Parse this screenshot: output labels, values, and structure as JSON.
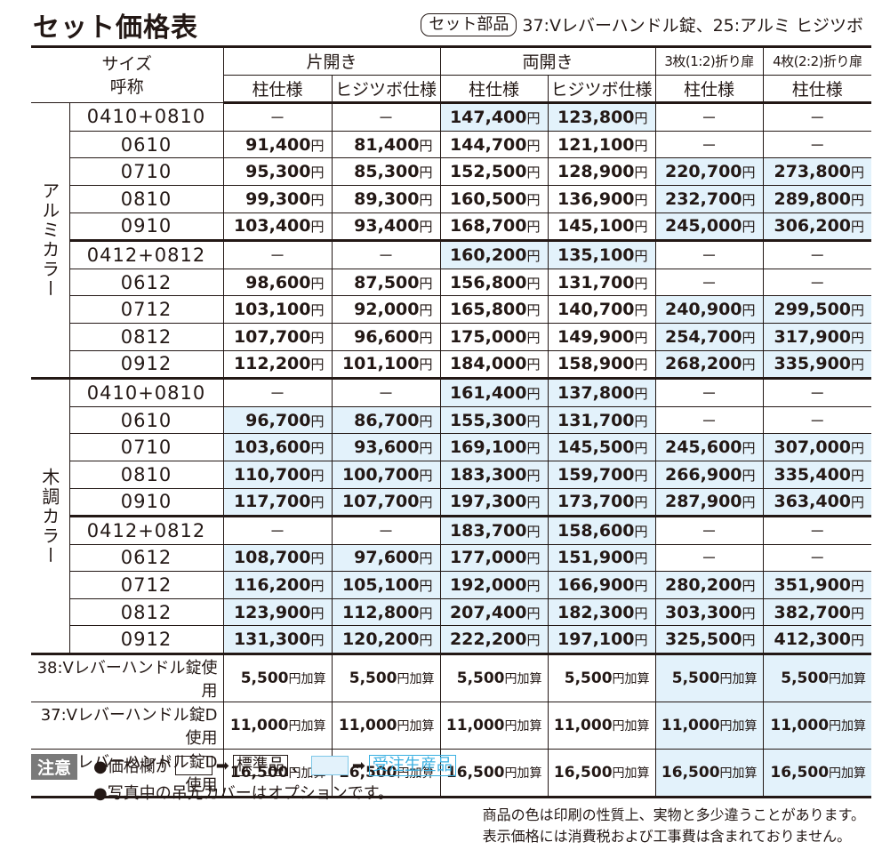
{
  "title": "セット価格表",
  "set_parts": {
    "badge": "セット部品",
    "text": "37:Vレバーハンドル錠、25:アルミ ヒジツボ"
  },
  "header": {
    "size_label_1": "サイズ",
    "size_label_2": "呼称",
    "groups": [
      "片開き",
      "両開き",
      "3枚(1:2)折り扉",
      "4枚(2:2)折り扉"
    ],
    "subcolumns": [
      "柱仕様",
      "ヒジツボ仕様",
      "柱仕様",
      "ヒジツボ仕様",
      "柱仕様",
      "柱仕様"
    ]
  },
  "colors": {
    "standard_bg": "#ffffff",
    "made_to_order_bg": "#e3f2fb",
    "made_to_order_accent": "#3ab0e2",
    "text": "#231815",
    "note_badge": "#7a7a7a"
  },
  "yen": "円",
  "add_suffix": "円加算",
  "sections": [
    {
      "label": "アルミカラー",
      "rows": [
        {
          "size": "0410+0810",
          "cells": [
            {
              "v": "－",
              "b": false
            },
            {
              "v": "－",
              "b": false
            },
            {
              "v": "147,400",
              "b": true
            },
            {
              "v": "123,800",
              "b": true
            },
            {
              "v": "－",
              "b": false
            },
            {
              "v": "－",
              "b": false
            }
          ]
        },
        {
          "size": "0610",
          "cells": [
            {
              "v": "91,400",
              "b": false
            },
            {
              "v": "81,400",
              "b": false
            },
            {
              "v": "144,700",
              "b": false
            },
            {
              "v": "121,100",
              "b": false
            },
            {
              "v": "－",
              "b": false
            },
            {
              "v": "－",
              "b": false
            }
          ]
        },
        {
          "size": "0710",
          "cells": [
            {
              "v": "95,300",
              "b": false
            },
            {
              "v": "85,300",
              "b": false
            },
            {
              "v": "152,500",
              "b": false
            },
            {
              "v": "128,900",
              "b": false
            },
            {
              "v": "220,700",
              "b": true
            },
            {
              "v": "273,800",
              "b": true
            }
          ]
        },
        {
          "size": "0810",
          "cells": [
            {
              "v": "99,300",
              "b": false
            },
            {
              "v": "89,300",
              "b": false
            },
            {
              "v": "160,500",
              "b": false
            },
            {
              "v": "136,900",
              "b": false
            },
            {
              "v": "232,700",
              "b": true
            },
            {
              "v": "289,800",
              "b": true
            }
          ]
        },
        {
          "size": "0910",
          "sep": true,
          "cells": [
            {
              "v": "103,400",
              "b": false
            },
            {
              "v": "93,400",
              "b": false
            },
            {
              "v": "168,700",
              "b": false
            },
            {
              "v": "145,100",
              "b": false
            },
            {
              "v": "245,000",
              "b": true
            },
            {
              "v": "306,200",
              "b": true
            }
          ]
        },
        {
          "size": "0412+0812",
          "cells": [
            {
              "v": "－",
              "b": false
            },
            {
              "v": "－",
              "b": false
            },
            {
              "v": "160,200",
              "b": true
            },
            {
              "v": "135,100",
              "b": true
            },
            {
              "v": "－",
              "b": false
            },
            {
              "v": "－",
              "b": false
            }
          ]
        },
        {
          "size": "0612",
          "cells": [
            {
              "v": "98,600",
              "b": false
            },
            {
              "v": "87,500",
              "b": false
            },
            {
              "v": "156,800",
              "b": false
            },
            {
              "v": "131,700",
              "b": false
            },
            {
              "v": "－",
              "b": false
            },
            {
              "v": "－",
              "b": false
            }
          ]
        },
        {
          "size": "0712",
          "cells": [
            {
              "v": "103,100",
              "b": false
            },
            {
              "v": "92,000",
              "b": false
            },
            {
              "v": "165,800",
              "b": false
            },
            {
              "v": "140,700",
              "b": false
            },
            {
              "v": "240,900",
              "b": true
            },
            {
              "v": "299,500",
              "b": true
            }
          ]
        },
        {
          "size": "0812",
          "cells": [
            {
              "v": "107,700",
              "b": false
            },
            {
              "v": "96,600",
              "b": false
            },
            {
              "v": "175,000",
              "b": false
            },
            {
              "v": "149,900",
              "b": false
            },
            {
              "v": "254,700",
              "b": true
            },
            {
              "v": "317,900",
              "b": true
            }
          ]
        },
        {
          "size": "0912",
          "cells": [
            {
              "v": "112,200",
              "b": false
            },
            {
              "v": "101,100",
              "b": false
            },
            {
              "v": "184,000",
              "b": false
            },
            {
              "v": "158,900",
              "b": false
            },
            {
              "v": "268,200",
              "b": true
            },
            {
              "v": "335,900",
              "b": true
            }
          ]
        }
      ]
    },
    {
      "label": "木調カラー",
      "rows": [
        {
          "size": "0410+0810",
          "cells": [
            {
              "v": "－",
              "b": false
            },
            {
              "v": "－",
              "b": false
            },
            {
              "v": "161,400",
              "b": true
            },
            {
              "v": "137,800",
              "b": true
            },
            {
              "v": "－",
              "b": false
            },
            {
              "v": "－",
              "b": false
            }
          ]
        },
        {
          "size": "0610",
          "cells": [
            {
              "v": "96,700",
              "b": true
            },
            {
              "v": "86,700",
              "b": true
            },
            {
              "v": "155,300",
              "b": true
            },
            {
              "v": "131,700",
              "b": true
            },
            {
              "v": "－",
              "b": false
            },
            {
              "v": "－",
              "b": false
            }
          ]
        },
        {
          "size": "0710",
          "cells": [
            {
              "v": "103,600",
              "b": true
            },
            {
              "v": "93,600",
              "b": true
            },
            {
              "v": "169,100",
              "b": true
            },
            {
              "v": "145,500",
              "b": true
            },
            {
              "v": "245,600",
              "b": true
            },
            {
              "v": "307,000",
              "b": true
            }
          ]
        },
        {
          "size": "0810",
          "cells": [
            {
              "v": "110,700",
              "b": true
            },
            {
              "v": "100,700",
              "b": true
            },
            {
              "v": "183,300",
              "b": true
            },
            {
              "v": "159,700",
              "b": true
            },
            {
              "v": "266,900",
              "b": true
            },
            {
              "v": "335,400",
              "b": true
            }
          ]
        },
        {
          "size": "0910",
          "sep": true,
          "cells": [
            {
              "v": "117,700",
              "b": true
            },
            {
              "v": "107,700",
              "b": true
            },
            {
              "v": "197,300",
              "b": true
            },
            {
              "v": "173,700",
              "b": true
            },
            {
              "v": "287,900",
              "b": true
            },
            {
              "v": "363,400",
              "b": true
            }
          ]
        },
        {
          "size": "0412+0812",
          "cells": [
            {
              "v": "－",
              "b": false
            },
            {
              "v": "－",
              "b": false
            },
            {
              "v": "183,700",
              "b": true
            },
            {
              "v": "158,600",
              "b": true
            },
            {
              "v": "－",
              "b": false
            },
            {
              "v": "－",
              "b": false
            }
          ]
        },
        {
          "size": "0612",
          "cells": [
            {
              "v": "108,700",
              "b": true
            },
            {
              "v": "97,600",
              "b": true
            },
            {
              "v": "177,000",
              "b": true
            },
            {
              "v": "151,900",
              "b": true
            },
            {
              "v": "－",
              "b": false
            },
            {
              "v": "－",
              "b": false
            }
          ]
        },
        {
          "size": "0712",
          "cells": [
            {
              "v": "116,200",
              "b": true
            },
            {
              "v": "105,100",
              "b": true
            },
            {
              "v": "192,000",
              "b": true
            },
            {
              "v": "166,900",
              "b": true
            },
            {
              "v": "280,200",
              "b": true
            },
            {
              "v": "351,900",
              "b": true
            }
          ]
        },
        {
          "size": "0812",
          "cells": [
            {
              "v": "123,900",
              "b": true
            },
            {
              "v": "112,800",
              "b": true
            },
            {
              "v": "207,400",
              "b": true
            },
            {
              "v": "182,300",
              "b": true
            },
            {
              "v": "303,300",
              "b": true
            },
            {
              "v": "382,700",
              "b": true
            }
          ]
        },
        {
          "size": "0912",
          "cells": [
            {
              "v": "131,300",
              "b": true
            },
            {
              "v": "120,200",
              "b": true
            },
            {
              "v": "222,200",
              "b": true
            },
            {
              "v": "197,100",
              "b": true
            },
            {
              "v": "325,500",
              "b": true
            },
            {
              "v": "412,300",
              "b": true
            }
          ]
        }
      ]
    }
  ],
  "options": [
    {
      "label": "38:Vレバーハンドル錠使用",
      "values": [
        "5,500",
        "5,500",
        "5,500",
        "5,500",
        "5,500",
        "5,500"
      ],
      "blue": [
        false,
        false,
        false,
        false,
        true,
        true
      ]
    },
    {
      "label": "37:Vレバーハンドル錠D使用",
      "values": [
        "11,000",
        "11,000",
        "11,000",
        "11,000",
        "11,000",
        "11,000"
      ],
      "blue": [
        false,
        false,
        false,
        false,
        true,
        true
      ]
    },
    {
      "label": "38:Vレバーハンドル錠D使用",
      "values": [
        "16,500",
        "16,500",
        "16,500",
        "16,500",
        "16,500",
        "16,500"
      ],
      "blue": [
        false,
        false,
        false,
        false,
        true,
        true
      ]
    }
  ],
  "notes": {
    "badge": "注意",
    "line1_prefix": "●価格欄が",
    "arrow": "➡",
    "standard_label": "標準品",
    "separator": "、",
    "order_label": "受注生産品",
    "line2": "●写真中の吊元カバーはオプションです。"
  },
  "disclaimer": [
    "商品の色は印刷の性質上、実物と多少違うことがあります。",
    "表示価格には消費税および工事費は含まれておりません。"
  ]
}
